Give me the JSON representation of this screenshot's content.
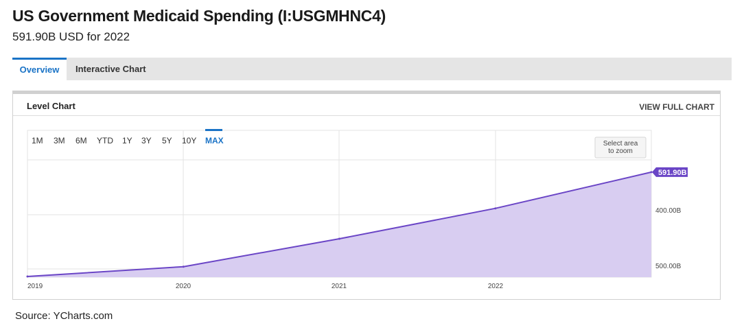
{
  "header": {
    "title": "US Government Medicaid Spending (I:USGMHNC4)",
    "subtitle": "591.90B USD for 2022"
  },
  "tabs": [
    {
      "label": "Overview",
      "active": true
    },
    {
      "label": "Interactive Chart",
      "active": false
    }
  ],
  "card": {
    "title": "Level Chart",
    "view_full_label": "VIEW FULL CHART"
  },
  "range_selector": {
    "options": [
      "1M",
      "3M",
      "6M",
      "YTD",
      "1Y",
      "3Y",
      "5Y",
      "10Y",
      "MAX"
    ],
    "active": "MAX"
  },
  "zoom_hint": [
    "Select area",
    "to zoom"
  ],
  "colors": {
    "accent": "#1a73c6",
    "line": "#6a45c6",
    "fill": "#d8cdf1",
    "grid": "#e3e3e3"
  },
  "chart_data": {
    "type": "area",
    "x": [
      2018.75,
      2019.75,
      2020.75,
      2021.75,
      2022.75
    ],
    "x_tick_labels": [
      "2019",
      "2020",
      "2021",
      "2022"
    ],
    "y": [
      379.0,
      399.0,
      456.0,
      518.0,
      591.9
    ],
    "y_unit": "B USD",
    "y_tick_labels": [
      "400.00B",
      "500.00B"
    ],
    "ylim": [
      375,
      595
    ],
    "last_value_label": "591.90B",
    "grid": true
  },
  "source": "Source: YCharts.com"
}
